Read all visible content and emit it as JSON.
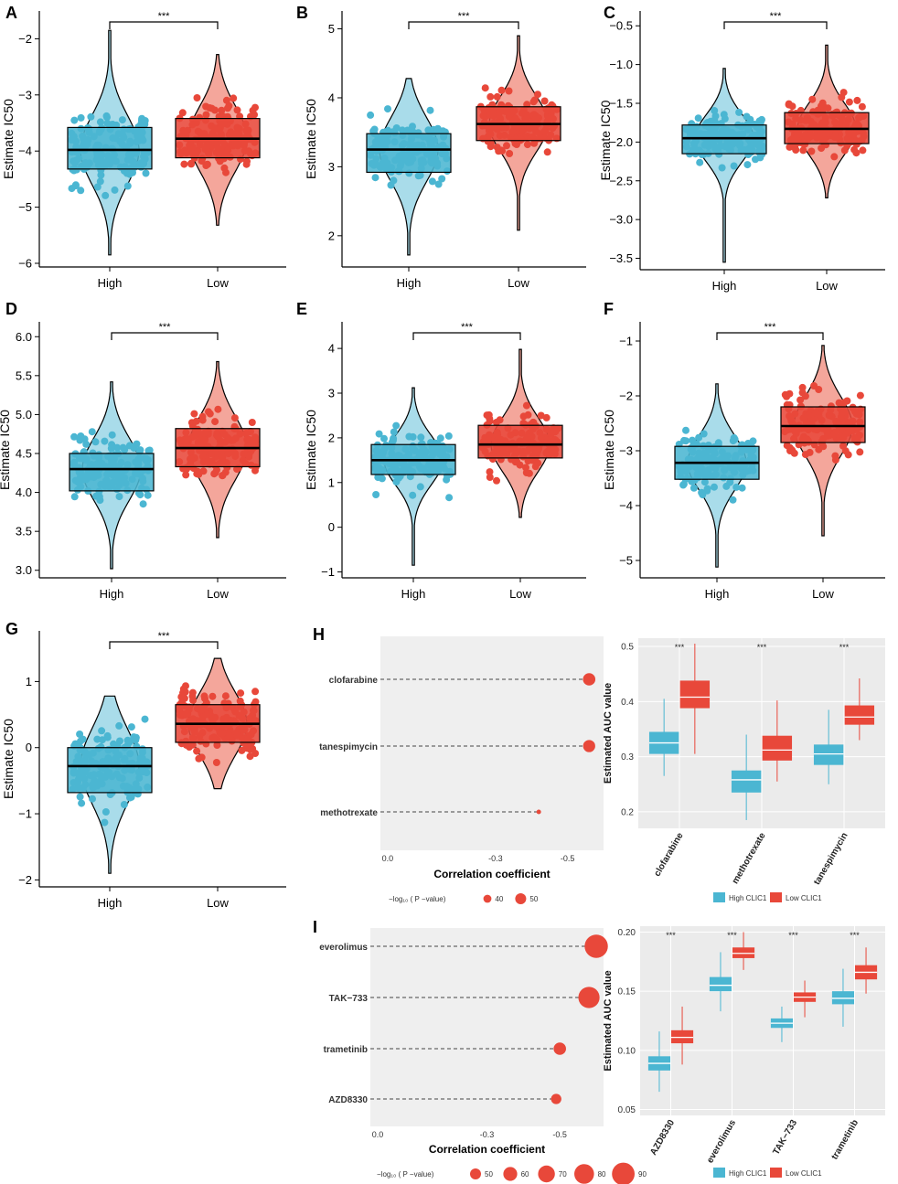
{
  "colors": {
    "high": "#4bb6d2",
    "high_light": "#a9dcea",
    "low": "#e8483a",
    "low_light": "#f4a69b",
    "axis": "#000000",
    "panel_bg": "#ebebeb",
    "gridline": "#ffffff"
  },
  "chart_data": [
    {
      "panel": "A",
      "type": "box-violin-jitter",
      "ylabel": "Estimate IC50",
      "categories": [
        "High",
        "Low"
      ],
      "ylim": [
        -6,
        -1.7
      ],
      "yticks": [
        -6,
        -5,
        -4,
        -3,
        -2
      ],
      "signif": "***",
      "groups": [
        {
          "name": "High",
          "q1": -4.32,
          "median": -3.98,
          "q3": -3.58,
          "min": -5.85,
          "max": -1.85
        },
        {
          "name": "Low",
          "q1": -4.12,
          "median": -3.78,
          "q3": -3.42,
          "min": -5.32,
          "max": -2.28
        }
      ]
    },
    {
      "panel": "B",
      "type": "box-violin-jitter",
      "ylabel": "Estimate IC50",
      "categories": [
        "High",
        "Low"
      ],
      "ylim": [
        1.6,
        5.1
      ],
      "yticks": [
        2,
        3,
        4,
        5
      ],
      "signif": "***",
      "groups": [
        {
          "name": "High",
          "q1": 2.92,
          "median": 3.25,
          "q3": 3.48,
          "min": 1.72,
          "max": 4.28
        },
        {
          "name": "Low",
          "q1": 3.38,
          "median": 3.62,
          "q3": 3.87,
          "min": 2.08,
          "max": 4.9
        }
      ]
    },
    {
      "panel": "C",
      "type": "box-violin-jitter",
      "ylabel": "Estimate IC50",
      "categories": [
        "High",
        "Low"
      ],
      "ylim": [
        -3.6,
        -0.45
      ],
      "yticks": [
        -3.5,
        -3.0,
        -2.5,
        -2.0,
        -1.5,
        -1.0,
        -0.5
      ],
      "ytick_labels": [
        "-3.5",
        "-3.0",
        "-2.5",
        "-2.0",
        "-1.5",
        "-1.0",
        "-0.5"
      ],
      "signif": "***",
      "groups": [
        {
          "name": "High",
          "q1": -2.15,
          "median": -1.95,
          "q3": -1.78,
          "min": -3.55,
          "max": -1.05
        },
        {
          "name": "Low",
          "q1": -2.02,
          "median": -1.83,
          "q3": -1.62,
          "min": -2.72,
          "max": -0.75
        }
      ]
    },
    {
      "panel": "D",
      "type": "box-violin-jitter",
      "ylabel": "Estimate IC50",
      "categories": [
        "High",
        "Low"
      ],
      "ylim": [
        2.95,
        6.05
      ],
      "yticks": [
        3.0,
        3.5,
        4.0,
        4.5,
        5.0,
        5.5,
        6.0
      ],
      "ytick_labels": [
        "3.0",
        "3.5",
        "4.0",
        "4.5",
        "5.0",
        "5.5",
        "6.0"
      ],
      "signif": "***",
      "groups": [
        {
          "name": "High",
          "q1": 4.02,
          "median": 4.3,
          "q3": 4.5,
          "min": 3.02,
          "max": 5.42
        },
        {
          "name": "Low",
          "q1": 4.33,
          "median": 4.57,
          "q3": 4.82,
          "min": 3.42,
          "max": 5.68
        }
      ]
    },
    {
      "panel": "E",
      "type": "box-violin-jitter",
      "ylabel": "Estimate IC50",
      "categories": [
        "High",
        "Low"
      ],
      "ylim": [
        -1.05,
        4.35
      ],
      "yticks": [
        -1,
        0,
        1,
        2,
        3,
        4
      ],
      "signif": "***",
      "groups": [
        {
          "name": "High",
          "q1": 1.18,
          "median": 1.5,
          "q3": 1.85,
          "min": -0.85,
          "max": 3.12
        },
        {
          "name": "Low",
          "q1": 1.55,
          "median": 1.85,
          "q3": 2.28,
          "min": 0.22,
          "max": 3.98
        }
      ]
    },
    {
      "panel": "F",
      "type": "box-violin-jitter",
      "ylabel": "Estimate IC50",
      "categories": [
        "High",
        "Low"
      ],
      "ylim": [
        -5.25,
        -0.85
      ],
      "yticks": [
        -5,
        -4,
        -3,
        -2,
        -1
      ],
      "signif": "***",
      "groups": [
        {
          "name": "High",
          "q1": -3.52,
          "median": -3.22,
          "q3": -2.92,
          "min": -5.12,
          "max": -1.78
        },
        {
          "name": "Low",
          "q1": -2.85,
          "median": -2.55,
          "q3": -2.2,
          "min": -4.55,
          "max": -1.08
        }
      ]
    },
    {
      "panel": "G",
      "type": "box-violin-jitter",
      "ylabel": "Estimate IC50",
      "categories": [
        "High",
        "Low"
      ],
      "ylim": [
        -2.05,
        1.6
      ],
      "yticks": [
        -2,
        -1,
        0,
        1
      ],
      "signif": "***",
      "groups": [
        {
          "name": "High",
          "q1": -0.68,
          "median": -0.28,
          "q3": 0.0,
          "min": -1.9,
          "max": 0.78
        },
        {
          "name": "Low",
          "q1": 0.08,
          "median": 0.36,
          "q3": 0.65,
          "min": -0.62,
          "max": 1.35
        }
      ]
    },
    {
      "panel": "H",
      "type": "lollipop",
      "xlabel": "Correlation coefficient",
      "xlim": [
        0.02,
        -0.6
      ],
      "xticks": [
        0.0,
        -0.3,
        -0.5
      ],
      "xtick_labels": [
        "0.0",
        "-0.3",
        "-0.5"
      ],
      "legend_title": "−log₁₀ ( P −value)",
      "legend_sizes": [
        40,
        50
      ],
      "items": [
        {
          "label": "clofarabine",
          "r": -0.56,
          "neglogp": 55
        },
        {
          "label": "tanespimycin",
          "r": -0.56,
          "neglogp": 54
        },
        {
          "label": "methotrexate",
          "r": -0.42,
          "neglogp": 28
        }
      ]
    },
    {
      "panel": "H",
      "type": "grouped-box",
      "ylabel": "Estimated AUC value",
      "ylim": [
        0.17,
        0.515
      ],
      "yticks": [
        0.2,
        0.3,
        0.4,
        0.5
      ],
      "ytick_labels": [
        "0.2",
        "0.3",
        "0.4",
        "0.5"
      ],
      "categories": [
        "clofarabine",
        "methotrexate",
        "tanespimycin"
      ],
      "legend": [
        "High CLIC1",
        "Low CLIC1"
      ],
      "signif": [
        "***",
        "***",
        "***"
      ],
      "series": [
        {
          "name": "High CLIC1",
          "boxes": [
            {
              "min": 0.265,
              "q1": 0.305,
              "median": 0.325,
              "q3": 0.345,
              "max": 0.405
            },
            {
              "min": 0.185,
              "q1": 0.235,
              "median": 0.258,
              "q3": 0.275,
              "max": 0.34
            },
            {
              "min": 0.25,
              "q1": 0.285,
              "median": 0.305,
              "q3": 0.322,
              "max": 0.385
            }
          ]
        },
        {
          "name": "Low CLIC1",
          "boxes": [
            {
              "min": 0.305,
              "q1": 0.388,
              "median": 0.408,
              "q3": 0.438,
              "max": 0.505
            },
            {
              "min": 0.255,
              "q1": 0.293,
              "median": 0.312,
              "q3": 0.338,
              "max": 0.402
            },
            {
              "min": 0.33,
              "q1": 0.358,
              "median": 0.372,
              "q3": 0.393,
              "max": 0.442
            }
          ]
        }
      ]
    },
    {
      "panel": "I",
      "type": "lollipop",
      "xlabel": "Correlation coefficient",
      "xlim": [
        0.02,
        -0.62
      ],
      "xticks": [
        0.0,
        -0.3,
        -0.5
      ],
      "xtick_labels": [
        "0.0",
        "-0.3",
        "-0.5"
      ],
      "legend_title": "−log₁₀ ( P −value)",
      "legend_sizes": [
        50,
        60,
        70,
        80,
        90
      ],
      "items": [
        {
          "label": "everolimus",
          "r": -0.6,
          "neglogp": 92
        },
        {
          "label": "TAK−733",
          "r": -0.58,
          "neglogp": 85
        },
        {
          "label": "trametinib",
          "r": -0.5,
          "neglogp": 55
        },
        {
          "label": "AZD8330",
          "r": -0.49,
          "neglogp": 48
        }
      ]
    },
    {
      "panel": "I",
      "type": "grouped-box",
      "ylabel": "Estimated AUC value",
      "ylim": [
        0.045,
        0.205
      ],
      "yticks": [
        0.05,
        0.1,
        0.15,
        0.2
      ],
      "ytick_labels": [
        "0.05",
        "0.10",
        "0.15",
        "0.20"
      ],
      "categories": [
        "AZD8330",
        "everolimus",
        "TAK−733",
        "trametinib"
      ],
      "legend": [
        "High CLIC1",
        "Low CLIC1"
      ],
      "signif": [
        "***",
        "***",
        "***",
        "***"
      ],
      "series": [
        {
          "name": "High CLIC1",
          "boxes": [
            {
              "min": 0.065,
              "q1": 0.083,
              "median": 0.089,
              "q3": 0.095,
              "max": 0.116
            },
            {
              "min": 0.133,
              "q1": 0.15,
              "median": 0.155,
              "q3": 0.162,
              "max": 0.183
            },
            {
              "min": 0.107,
              "q1": 0.119,
              "median": 0.123,
              "q3": 0.127,
              "max": 0.137
            },
            {
              "min": 0.12,
              "q1": 0.139,
              "median": 0.144,
              "q3": 0.15,
              "max": 0.169
            }
          ]
        },
        {
          "name": "Low CLIC1",
          "boxes": [
            {
              "min": 0.088,
              "q1": 0.106,
              "median": 0.111,
              "q3": 0.117,
              "max": 0.137
            },
            {
              "min": 0.168,
              "q1": 0.178,
              "median": 0.182,
              "q3": 0.187,
              "max": 0.2
            },
            {
              "min": 0.128,
              "q1": 0.141,
              "median": 0.145,
              "q3": 0.149,
              "max": 0.159
            },
            {
              "min": 0.148,
              "q1": 0.16,
              "median": 0.166,
              "q3": 0.172,
              "max": 0.187
            }
          ]
        }
      ]
    }
  ]
}
